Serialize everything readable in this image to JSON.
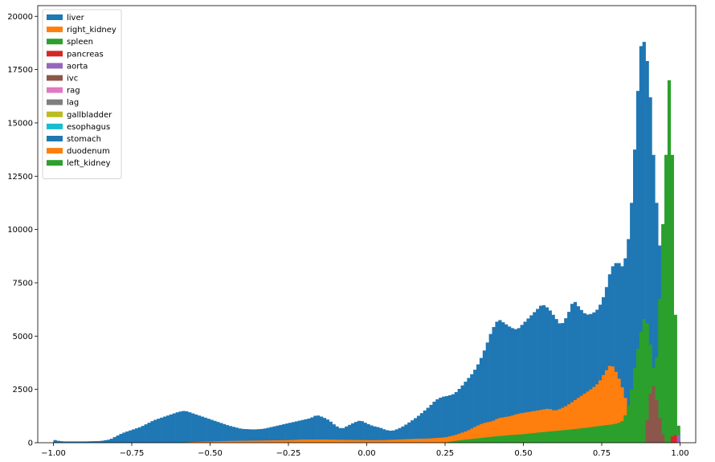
{
  "chart_data": {
    "type": "histogram",
    "stacked": false,
    "bin_width": 0.01,
    "xlim": [
      -1.05,
      1.05
    ],
    "ylim": [
      0,
      20500
    ],
    "xticks": [
      -1.0,
      -0.75,
      -0.5,
      -0.25,
      0.0,
      0.25,
      0.5,
      0.75,
      1.0
    ],
    "xtick_labels": [
      "−1.00",
      "−0.75",
      "−0.50",
      "−0.25",
      "0.00",
      "0.25",
      "0.50",
      "0.75",
      "1.00"
    ],
    "yticks": [
      0,
      2500,
      5000,
      7500,
      10000,
      12500,
      15000,
      17500,
      20000
    ],
    "ytick_labels": [
      "0",
      "2500",
      "5000",
      "7500",
      "10000",
      "12500",
      "15000",
      "17500",
      "20000"
    ],
    "legend_position": "upper-left",
    "grid": false,
    "series": [
      {
        "name": "liver",
        "color": "#1f77b4",
        "points": [
          [
            -1.0,
            150
          ],
          [
            -0.99,
            100
          ],
          [
            -0.97,
            60
          ],
          [
            -0.9,
            60
          ],
          [
            -0.85,
            80
          ],
          [
            -0.82,
            150
          ],
          [
            -0.8,
            300
          ],
          [
            -0.78,
            450
          ],
          [
            -0.75,
            600
          ],
          [
            -0.72,
            750
          ],
          [
            -0.7,
            900
          ],
          [
            -0.68,
            1050
          ],
          [
            -0.65,
            1200
          ],
          [
            -0.62,
            1350
          ],
          [
            -0.6,
            1450
          ],
          [
            -0.58,
            1500
          ],
          [
            -0.56,
            1400
          ],
          [
            -0.54,
            1300
          ],
          [
            -0.52,
            1200
          ],
          [
            -0.5,
            1100
          ],
          [
            -0.47,
            950
          ],
          [
            -0.44,
            800
          ],
          [
            -0.4,
            650
          ],
          [
            -0.36,
            620
          ],
          [
            -0.33,
            650
          ],
          [
            -0.3,
            750
          ],
          [
            -0.27,
            850
          ],
          [
            -0.24,
            950
          ],
          [
            -0.21,
            1050
          ],
          [
            -0.18,
            1150
          ],
          [
            -0.16,
            1300
          ],
          [
            -0.14,
            1200
          ],
          [
            -0.12,
            1050
          ],
          [
            -0.1,
            800
          ],
          [
            -0.08,
            650
          ],
          [
            -0.06,
            800
          ],
          [
            -0.04,
            950
          ],
          [
            -0.02,
            1050
          ],
          [
            0.0,
            900
          ],
          [
            0.02,
            780
          ],
          [
            0.04,
            720
          ],
          [
            0.06,
            600
          ],
          [
            0.08,
            550
          ],
          [
            0.1,
            650
          ],
          [
            0.12,
            800
          ],
          [
            0.14,
            1000
          ],
          [
            0.16,
            1200
          ],
          [
            0.18,
            1450
          ],
          [
            0.2,
            1700
          ],
          [
            0.22,
            2000
          ],
          [
            0.24,
            2150
          ],
          [
            0.26,
            2200
          ],
          [
            0.28,
            2300
          ],
          [
            0.3,
            2600
          ],
          [
            0.32,
            2950
          ],
          [
            0.34,
            3300
          ],
          [
            0.36,
            3800
          ],
          [
            0.38,
            4500
          ],
          [
            0.4,
            5300
          ],
          [
            0.42,
            5800
          ],
          [
            0.44,
            5600
          ],
          [
            0.46,
            5400
          ],
          [
            0.48,
            5300
          ],
          [
            0.5,
            5600
          ],
          [
            0.52,
            5900
          ],
          [
            0.54,
            6200
          ],
          [
            0.56,
            6500
          ],
          [
            0.58,
            6300
          ],
          [
            0.6,
            5900
          ],
          [
            0.62,
            5500
          ],
          [
            0.64,
            5950
          ],
          [
            0.66,
            6700
          ],
          [
            0.68,
            6300
          ],
          [
            0.7,
            6000
          ],
          [
            0.72,
            6050
          ],
          [
            0.74,
            6300
          ],
          [
            0.76,
            7000
          ],
          [
            0.78,
            8200
          ],
          [
            0.8,
            8500
          ],
          [
            0.82,
            8200
          ],
          [
            0.84,
            10000
          ],
          [
            0.85,
            12500
          ],
          [
            0.86,
            15000
          ],
          [
            0.87,
            18000
          ],
          [
            0.88,
            19200
          ],
          [
            0.89,
            18400
          ],
          [
            0.9,
            17400
          ],
          [
            0.91,
            15000
          ],
          [
            0.92,
            12000
          ],
          [
            0.93,
            10500
          ],
          [
            0.94,
            8000
          ],
          [
            0.95,
            5000
          ],
          [
            0.96,
            2500
          ],
          [
            0.97,
            800
          ],
          [
            0.98,
            150
          ],
          [
            0.99,
            0
          ]
        ]
      },
      {
        "name": "right_kidney",
        "color": "#ff7f0e",
        "points": [
          [
            -0.6,
            0
          ],
          [
            -0.55,
            40
          ],
          [
            -0.45,
            80
          ],
          [
            -0.35,
            100
          ],
          [
            -0.25,
            120
          ],
          [
            -0.2,
            150
          ],
          [
            -0.15,
            150
          ],
          [
            -0.1,
            140
          ],
          [
            -0.05,
            130
          ],
          [
            0.0,
            120
          ],
          [
            0.05,
            120
          ],
          [
            0.1,
            150
          ],
          [
            0.15,
            180
          ],
          [
            0.2,
            200
          ],
          [
            0.25,
            250
          ],
          [
            0.28,
            350
          ],
          [
            0.3,
            450
          ],
          [
            0.32,
            550
          ],
          [
            0.34,
            700
          ],
          [
            0.36,
            850
          ],
          [
            0.38,
            950
          ],
          [
            0.4,
            1000
          ],
          [
            0.42,
            1150
          ],
          [
            0.44,
            1200
          ],
          [
            0.46,
            1250
          ],
          [
            0.48,
            1350
          ],
          [
            0.5,
            1400
          ],
          [
            0.52,
            1450
          ],
          [
            0.54,
            1500
          ],
          [
            0.56,
            1550
          ],
          [
            0.58,
            1600
          ],
          [
            0.6,
            1500
          ],
          [
            0.62,
            1600
          ],
          [
            0.64,
            1750
          ],
          [
            0.66,
            1950
          ],
          [
            0.68,
            2150
          ],
          [
            0.7,
            2350
          ],
          [
            0.72,
            2550
          ],
          [
            0.74,
            2800
          ],
          [
            0.76,
            3300
          ],
          [
            0.78,
            3700
          ],
          [
            0.8,
            3200
          ],
          [
            0.82,
            2400
          ],
          [
            0.84,
            1200
          ],
          [
            0.86,
            800
          ],
          [
            0.88,
            0
          ]
        ]
      },
      {
        "name": "spleen",
        "color": "#2ca02c",
        "points": [
          [
            0.25,
            0
          ],
          [
            0.27,
            60
          ],
          [
            0.3,
            120
          ],
          [
            0.35,
            200
          ],
          [
            0.4,
            280
          ],
          [
            0.45,
            350
          ],
          [
            0.5,
            400
          ],
          [
            0.55,
            480
          ],
          [
            0.6,
            550
          ],
          [
            0.65,
            620
          ],
          [
            0.7,
            700
          ],
          [
            0.75,
            800
          ],
          [
            0.78,
            850
          ],
          [
            0.8,
            900
          ],
          [
            0.82,
            1050
          ],
          [
            0.84,
            2000
          ],
          [
            0.86,
            4000
          ],
          [
            0.88,
            5600
          ],
          [
            0.89,
            6000
          ],
          [
            0.9,
            5200
          ],
          [
            0.91,
            4000
          ],
          [
            0.92,
            3000
          ],
          [
            0.93,
            5000
          ],
          [
            0.94,
            8500
          ],
          [
            0.95,
            12000
          ],
          [
            0.96,
            15000
          ],
          [
            0.965,
            17000
          ],
          [
            0.97,
            16200
          ],
          [
            0.975,
            13500
          ],
          [
            0.98,
            9500
          ],
          [
            0.985,
            6000
          ],
          [
            0.99,
            3500
          ],
          [
            0.995,
            800
          ],
          [
            1.0,
            0
          ]
        ]
      },
      {
        "name": "pancreas",
        "color": "#d62728",
        "points": [
          [
            0.97,
            200
          ],
          [
            0.98,
            400
          ],
          [
            0.99,
            300
          ],
          [
            1.0,
            0
          ]
        ]
      },
      {
        "name": "aorta",
        "color": "#9467bd",
        "points": [
          [
            0.99,
            200
          ],
          [
            0.995,
            350
          ],
          [
            1.0,
            0
          ]
        ]
      },
      {
        "name": "ivc",
        "color": "#8c564b",
        "points": [
          [
            0.89,
            300
          ],
          [
            0.9,
            1800
          ],
          [
            0.91,
            2800
          ],
          [
            0.92,
            2500
          ],
          [
            0.93,
            1500
          ],
          [
            0.94,
            800
          ],
          [
            0.95,
            0
          ]
        ]
      },
      {
        "name": "rag",
        "color": "#e377c2",
        "points": [
          [
            0.99,
            50
          ],
          [
            1.0,
            0
          ]
        ]
      },
      {
        "name": "lag",
        "color": "#7f7f7f",
        "points": [
          [
            0.99,
            50
          ],
          [
            1.0,
            0
          ]
        ]
      },
      {
        "name": "gallbladder",
        "color": "#bcbd22",
        "points": []
      },
      {
        "name": "esophagus",
        "color": "#17becf",
        "points": []
      },
      {
        "name": "stomach",
        "color": "#1f77b4",
        "points": []
      },
      {
        "name": "duodenum",
        "color": "#ff7f0e",
        "points": []
      },
      {
        "name": "left_kidney",
        "color": "#2ca02c",
        "points": []
      }
    ]
  }
}
